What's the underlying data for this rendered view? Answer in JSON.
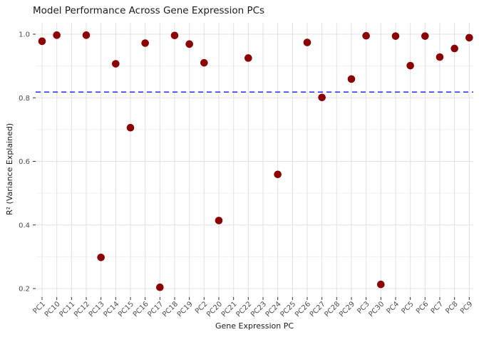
{
  "chart_data": {
    "type": "scatter",
    "title": "Model Performance Across Gene Expression PCs",
    "xlabel": "Gene Expression PC",
    "ylabel": "R² (Variance Explained)",
    "categories": [
      "PC1",
      "PC10",
      "PC11",
      "PC12",
      "PC13",
      "PC14",
      "PC15",
      "PC16",
      "PC17",
      "PC18",
      "PC19",
      "PC2",
      "PC20",
      "PC21",
      "PC22",
      "PC23",
      "PC24",
      "PC25",
      "PC26",
      "PC27",
      "PC28",
      "PC29",
      "PC3",
      "PC30",
      "PC4",
      "PC5",
      "PC6",
      "PC7",
      "PC8",
      "PC9"
    ],
    "values": [
      0.978,
      0.997,
      null,
      0.997,
      0.298,
      0.907,
      0.706,
      0.972,
      0.204,
      0.996,
      0.969,
      0.91,
      0.414,
      null,
      0.925,
      null,
      0.559,
      null,
      0.974,
      0.801,
      null,
      0.859,
      0.995,
      0.213,
      0.994,
      0.901,
      0.994,
      0.928,
      0.955,
      0.989
    ],
    "threshold_line": {
      "value": 0.818,
      "style": "dashed",
      "color": "#1515ff"
    },
    "yticks": [
      0.2,
      0.4,
      0.6,
      0.8,
      1.0
    ],
    "ytick_labels": [
      "0.2",
      "0.4",
      "0.6",
      "0.8",
      "1.0"
    ],
    "yminor": [
      0.3,
      0.5,
      0.7,
      0.9
    ],
    "ylim": [
      0.17,
      1.035
    ],
    "grid": "on",
    "legend": "none",
    "point_color": "#8B0000",
    "colors": {
      "grid_major": "#e3e3e3",
      "grid_minor": "#f0f0f0",
      "tick_mark": "#333333",
      "tick_text": "#4d4d4d",
      "text": "#1a1a1a",
      "background": "#ffffff"
    }
  }
}
